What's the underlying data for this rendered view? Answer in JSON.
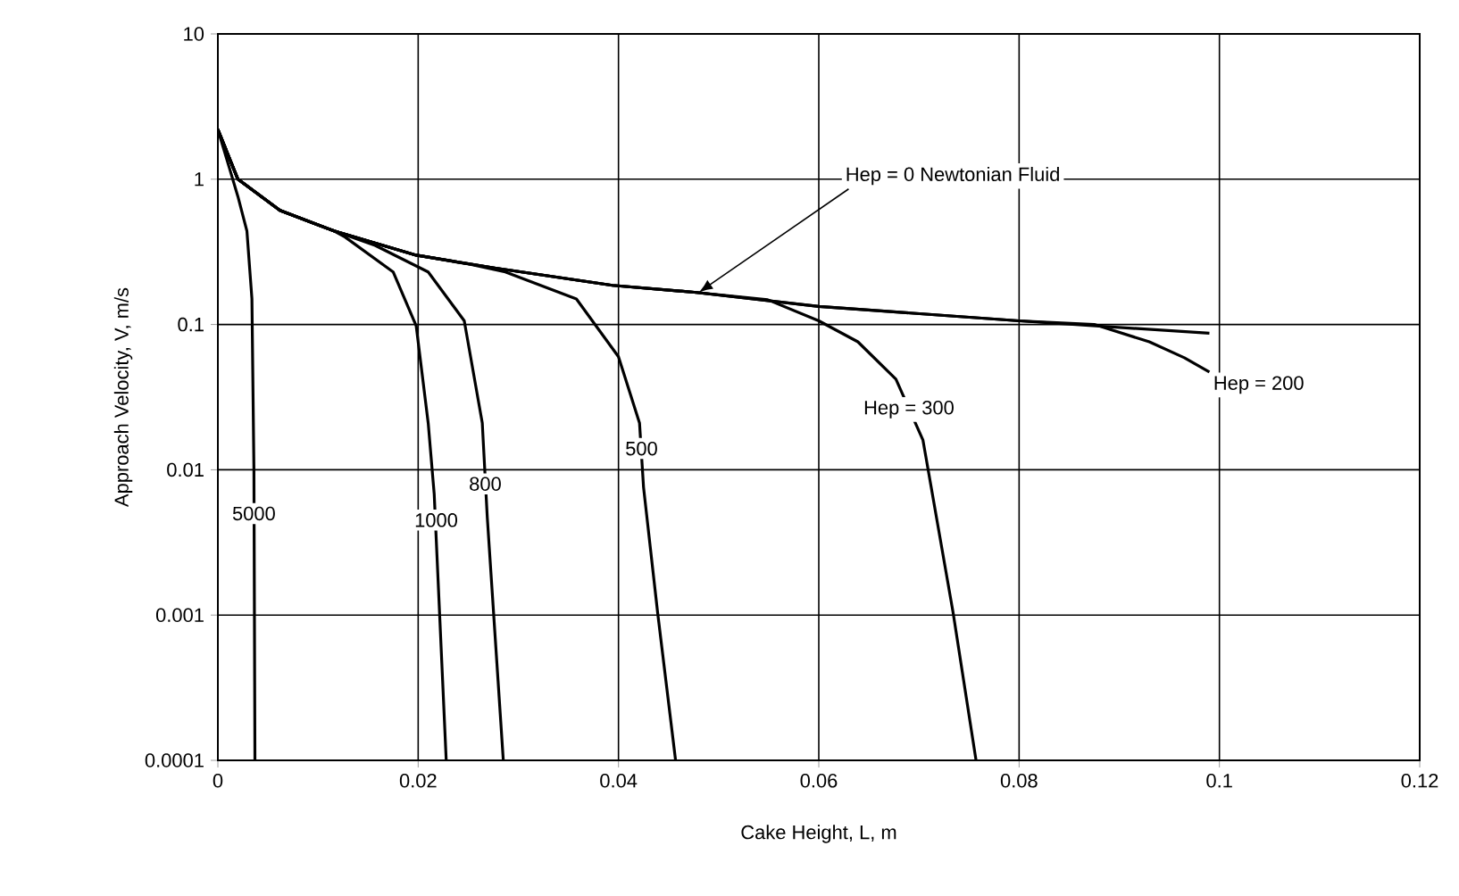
{
  "chart_data": {
    "type": "line",
    "xlabel": "Cake Height, L, m",
    "ylabel": "Approach Velocity, V, m/s",
    "log": "y",
    "grid": true,
    "marker": "none",
    "line_style": "solid",
    "xlim": [
      0,
      0.12
    ],
    "ylim": [
      0.0001,
      10
    ],
    "xticks": [
      {
        "value": 0,
        "label": "0"
      },
      {
        "value": 0.02,
        "label": "0.02"
      },
      {
        "value": 0.04,
        "label": "0.04"
      },
      {
        "value": 0.06,
        "label": "0.06"
      },
      {
        "value": 0.08,
        "label": "0.08"
      },
      {
        "value": 0.1,
        "label": "0.1"
      },
      {
        "value": 0.12,
        "label": "0.12"
      }
    ],
    "yticks": [
      {
        "value": 0.0001,
        "label": "0.0001"
      },
      {
        "value": 0.001,
        "label": "0.001"
      },
      {
        "value": 0.01,
        "label": "0.01"
      },
      {
        "value": 0.1,
        "label": "0.1"
      },
      {
        "value": 1,
        "label": "1"
      },
      {
        "value": 10,
        "label": "10"
      }
    ],
    "series": [
      {
        "color": "#000000",
        "x": [
          0,
          0.002,
          0.0062,
          0.0116,
          0.0198,
          0.0276,
          0.0394,
          0.0478,
          0.06,
          0.08,
          0.099
        ],
        "values": [
          2.2,
          1.0,
          0.61,
          0.44,
          0.3,
          0.245,
          0.186,
          0.166,
          0.133,
          0.106,
          0.087
        ]
      },
      {
        "color": "#000000",
        "x": [
          0,
          0.002,
          0.0062,
          0.0116,
          0.0198,
          0.0276,
          0.0394,
          0.0478,
          0.06,
          0.08,
          0.0875,
          0.093,
          0.0965,
          0.099
        ],
        "values": [
          2.2,
          1.0,
          0.61,
          0.44,
          0.3,
          0.245,
          0.186,
          0.166,
          0.133,
          0.106,
          0.1,
          0.076,
          0.059,
          0.047
        ]
      },
      {
        "color": "#000000",
        "x": [
          0,
          0.002,
          0.0062,
          0.0116,
          0.0198,
          0.0276,
          0.0394,
          0.0478,
          0.0549,
          0.06,
          0.0639,
          0.0677,
          0.0704,
          0.0734,
          0.0757
        ],
        "values": [
          2.2,
          1.0,
          0.61,
          0.44,
          0.3,
          0.245,
          0.186,
          0.166,
          0.148,
          0.106,
          0.076,
          0.042,
          0.016,
          0.00105,
          0.0001
        ]
      },
      {
        "color": "#000000",
        "x": [
          0,
          0.002,
          0.0062,
          0.0116,
          0.0198,
          0.0251,
          0.0287,
          0.0358,
          0.04,
          0.0421,
          0.0425,
          0.0439,
          0.0457
        ],
        "values": [
          2.2,
          1.0,
          0.61,
          0.44,
          0.3,
          0.26,
          0.23,
          0.15,
          0.06,
          0.021,
          0.0076,
          0.00105,
          0.0001
        ]
      },
      {
        "color": "#000000",
        "x": [
          0,
          0.002,
          0.0062,
          0.0116,
          0.0157,
          0.021,
          0.0246,
          0.0264,
          0.0269,
          0.0285
        ],
        "values": [
          2.2,
          1.0,
          0.61,
          0.44,
          0.35,
          0.23,
          0.106,
          0.021,
          0.0047,
          0.0001
        ]
      },
      {
        "color": "#000000",
        "x": [
          0,
          0.002,
          0.0062,
          0.0116,
          0.0127,
          0.0175,
          0.0198,
          0.021,
          0.0216,
          0.0228
        ],
        "values": [
          2.2,
          1.0,
          0.61,
          0.44,
          0.4,
          0.23,
          0.098,
          0.021,
          0.0068,
          0.0001
        ]
      },
      {
        "color": "#000000",
        "x": [
          0,
          0.002,
          0.0029,
          0.0034,
          0.0036,
          0.0037
        ],
        "values": [
          2.2,
          0.76,
          0.44,
          0.15,
          0.01,
          0.0001
        ]
      }
    ],
    "annotations": [
      {
        "text": "Hep = 0  Newtonian Fluid",
        "x": 0.048,
        "y": 0.166
      },
      {
        "text": "Hep = 200",
        "x": 0.099,
        "y": 0.047
      },
      {
        "text": "Hep = 300",
        "x": 0.069,
        "y": 0.026
      },
      {
        "text": "500",
        "x": 0.0423,
        "y": 0.014
      },
      {
        "text": "800",
        "x": 0.0267,
        "y": 0.008
      },
      {
        "text": "1000",
        "x": 0.0218,
        "y": 0.0045
      },
      {
        "text": "5000",
        "x": 0.0036,
        "y": 0.005
      }
    ]
  }
}
